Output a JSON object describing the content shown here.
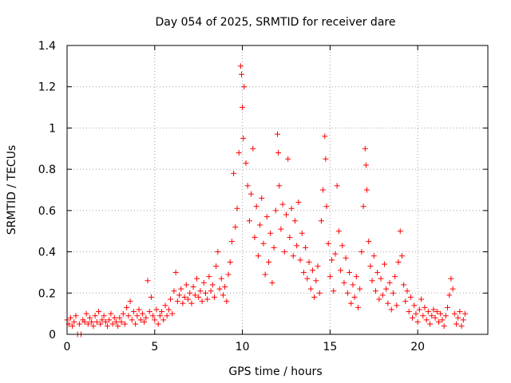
{
  "chart_data": {
    "type": "scatter",
    "title": "Day 054 of 2025, SRMTID for receiver dare",
    "xlabel": "GPS time / hours",
    "ylabel": "SRMTID / TECUs",
    "xlim": [
      0,
      24
    ],
    "ylim": [
      0,
      1.4
    ],
    "xticks": [
      0,
      5,
      10,
      15,
      20
    ],
    "yticks": [
      0,
      0.2,
      0.4,
      0.6,
      0.8,
      1,
      1.2,
      1.4
    ],
    "xtick_labels": [
      "0",
      "5",
      "10",
      "15",
      "20"
    ],
    "ytick_labels": [
      "0",
      "0.2",
      "0.4",
      "0.6",
      "0.8",
      "1",
      "1.2",
      "1.4"
    ],
    "grid": true,
    "marker": "+",
    "series": [
      {
        "name": "SRMTID",
        "color": "#ff0000",
        "points": [
          [
            0.0,
            0.07
          ],
          [
            0.1,
            0.05
          ],
          [
            0.2,
            0.08
          ],
          [
            0.3,
            0.04
          ],
          [
            0.4,
            0.06
          ],
          [
            0.5,
            0.09
          ],
          [
            0.6,
            0.0
          ],
          [
            0.7,
            0.05
          ],
          [
            0.8,
            0.0
          ],
          [
            0.9,
            0.07
          ],
          [
            1.0,
            0.06
          ],
          [
            1.1,
            0.1
          ],
          [
            1.2,
            0.05
          ],
          [
            1.3,
            0.08
          ],
          [
            1.4,
            0.06
          ],
          [
            1.5,
            0.04
          ],
          [
            1.6,
            0.09
          ],
          [
            1.7,
            0.06
          ],
          [
            1.8,
            0.11
          ],
          [
            1.9,
            0.05
          ],
          [
            2.0,
            0.07
          ],
          [
            2.1,
            0.09
          ],
          [
            2.2,
            0.06
          ],
          [
            2.3,
            0.04
          ],
          [
            2.4,
            0.07
          ],
          [
            2.5,
            0.1
          ],
          [
            2.6,
            0.05
          ],
          [
            2.7,
            0.08
          ],
          [
            2.8,
            0.06
          ],
          [
            2.9,
            0.04
          ],
          [
            3.0,
            0.08
          ],
          [
            3.1,
            0.06
          ],
          [
            3.2,
            0.1
          ],
          [
            3.3,
            0.05
          ],
          [
            3.4,
            0.13
          ],
          [
            3.5,
            0.09
          ],
          [
            3.6,
            0.16
          ],
          [
            3.7,
            0.07
          ],
          [
            3.8,
            0.11
          ],
          [
            3.9,
            0.05
          ],
          [
            4.0,
            0.09
          ],
          [
            4.1,
            0.12
          ],
          [
            4.2,
            0.07
          ],
          [
            4.3,
            0.1
          ],
          [
            4.4,
            0.06
          ],
          [
            4.5,
            0.08
          ],
          [
            4.6,
            0.26
          ],
          [
            4.7,
            0.11
          ],
          [
            4.8,
            0.18
          ],
          [
            4.9,
            0.09
          ],
          [
            5.0,
            0.07
          ],
          [
            5.1,
            0.12
          ],
          [
            5.2,
            0.05
          ],
          [
            5.3,
            0.09
          ],
          [
            5.4,
            0.11
          ],
          [
            5.5,
            0.07
          ],
          [
            5.6,
            0.14
          ],
          [
            5.7,
            0.09
          ],
          [
            5.8,
            0.12
          ],
          [
            5.9,
            0.17
          ],
          [
            6.0,
            0.1
          ],
          [
            6.1,
            0.21
          ],
          [
            6.2,
            0.3
          ],
          [
            6.3,
            0.16
          ],
          [
            6.4,
            0.19
          ],
          [
            6.5,
            0.22
          ],
          [
            6.6,
            0.15
          ],
          [
            6.7,
            0.18
          ],
          [
            6.8,
            0.24
          ],
          [
            6.9,
            0.17
          ],
          [
            7.0,
            0.2
          ],
          [
            7.1,
            0.15
          ],
          [
            7.2,
            0.23
          ],
          [
            7.3,
            0.19
          ],
          [
            7.4,
            0.27
          ],
          [
            7.5,
            0.18
          ],
          [
            7.6,
            0.21
          ],
          [
            7.7,
            0.16
          ],
          [
            7.8,
            0.25
          ],
          [
            7.9,
            0.2
          ],
          [
            8.0,
            0.17
          ],
          [
            8.1,
            0.28
          ],
          [
            8.2,
            0.21
          ],
          [
            8.3,
            0.24
          ],
          [
            8.4,
            0.18
          ],
          [
            8.5,
            0.33
          ],
          [
            8.6,
            0.4
          ],
          [
            8.7,
            0.22
          ],
          [
            8.8,
            0.27
          ],
          [
            8.9,
            0.19
          ],
          [
            9.0,
            0.23
          ],
          [
            9.1,
            0.16
          ],
          [
            9.2,
            0.29
          ],
          [
            9.3,
            0.35
          ],
          [
            9.4,
            0.45
          ],
          [
            9.5,
            0.78
          ],
          [
            9.6,
            0.52
          ],
          [
            9.7,
            0.61
          ],
          [
            9.8,
            0.88
          ],
          [
            9.9,
            1.3
          ],
          [
            9.95,
            1.26
          ],
          [
            10.0,
            1.1
          ],
          [
            10.05,
            0.95
          ],
          [
            10.1,
            1.2
          ],
          [
            10.2,
            0.83
          ],
          [
            10.3,
            0.72
          ],
          [
            10.4,
            0.55
          ],
          [
            10.5,
            0.68
          ],
          [
            10.6,
            0.9
          ],
          [
            10.7,
            0.47
          ],
          [
            10.8,
            0.62
          ],
          [
            10.9,
            0.38
          ],
          [
            11.0,
            0.53
          ],
          [
            11.1,
            0.66
          ],
          [
            11.2,
            0.44
          ],
          [
            11.3,
            0.29
          ],
          [
            11.4,
            0.57
          ],
          [
            11.5,
            0.35
          ],
          [
            11.6,
            0.49
          ],
          [
            11.7,
            0.25
          ],
          [
            11.8,
            0.42
          ],
          [
            11.9,
            0.6
          ],
          [
            12.0,
            0.97
          ],
          [
            12.05,
            0.88
          ],
          [
            12.1,
            0.72
          ],
          [
            12.2,
            0.51
          ],
          [
            12.3,
            0.63
          ],
          [
            12.4,
            0.4
          ],
          [
            12.5,
            0.58
          ],
          [
            12.6,
            0.85
          ],
          [
            12.7,
            0.47
          ],
          [
            12.8,
            0.61
          ],
          [
            12.9,
            0.38
          ],
          [
            13.0,
            0.55
          ],
          [
            13.1,
            0.43
          ],
          [
            13.2,
            0.64
          ],
          [
            13.3,
            0.36
          ],
          [
            13.4,
            0.49
          ],
          [
            13.5,
            0.3
          ],
          [
            13.6,
            0.42
          ],
          [
            13.7,
            0.27
          ],
          [
            13.8,
            0.35
          ],
          [
            13.9,
            0.22
          ],
          [
            14.0,
            0.31
          ],
          [
            14.1,
            0.18
          ],
          [
            14.2,
            0.26
          ],
          [
            14.3,
            0.33
          ],
          [
            14.4,
            0.2
          ],
          [
            14.5,
            0.55
          ],
          [
            14.6,
            0.7
          ],
          [
            14.7,
            0.96
          ],
          [
            14.75,
            0.85
          ],
          [
            14.8,
            0.62
          ],
          [
            14.9,
            0.44
          ],
          [
            15.0,
            0.28
          ],
          [
            15.1,
            0.36
          ],
          [
            15.2,
            0.21
          ],
          [
            15.3,
            0.39
          ],
          [
            15.4,
            0.72
          ],
          [
            15.5,
            0.5
          ],
          [
            15.6,
            0.31
          ],
          [
            15.7,
            0.43
          ],
          [
            15.8,
            0.25
          ],
          [
            15.9,
            0.37
          ],
          [
            16.0,
            0.2
          ],
          [
            16.1,
            0.3
          ],
          [
            16.2,
            0.15
          ],
          [
            16.3,
            0.24
          ],
          [
            16.4,
            0.18
          ],
          [
            16.5,
            0.28
          ],
          [
            16.6,
            0.13
          ],
          [
            16.7,
            0.22
          ],
          [
            16.8,
            0.4
          ],
          [
            16.9,
            0.62
          ],
          [
            17.0,
            0.9
          ],
          [
            17.05,
            0.82
          ],
          [
            17.1,
            0.7
          ],
          [
            17.2,
            0.45
          ],
          [
            17.3,
            0.33
          ],
          [
            17.4,
            0.26
          ],
          [
            17.5,
            0.38
          ],
          [
            17.6,
            0.21
          ],
          [
            17.7,
            0.3
          ],
          [
            17.8,
            0.17
          ],
          [
            17.9,
            0.27
          ],
          [
            18.0,
            0.19
          ],
          [
            18.1,
            0.34
          ],
          [
            18.2,
            0.22
          ],
          [
            18.3,
            0.15
          ],
          [
            18.4,
            0.25
          ],
          [
            18.5,
            0.12
          ],
          [
            18.6,
            0.2
          ],
          [
            18.7,
            0.28
          ],
          [
            18.8,
            0.14
          ],
          [
            18.9,
            0.35
          ],
          [
            19.0,
            0.5
          ],
          [
            19.1,
            0.38
          ],
          [
            19.2,
            0.24
          ],
          [
            19.3,
            0.16
          ],
          [
            19.4,
            0.21
          ],
          [
            19.5,
            0.11
          ],
          [
            19.6,
            0.18
          ],
          [
            19.7,
            0.08
          ],
          [
            19.8,
            0.14
          ],
          [
            19.9,
            0.1
          ],
          [
            20.0,
            0.06
          ],
          [
            20.1,
            0.12
          ],
          [
            20.2,
            0.17
          ],
          [
            20.3,
            0.09
          ],
          [
            20.4,
            0.13
          ],
          [
            20.5,
            0.07
          ],
          [
            20.6,
            0.11
          ],
          [
            20.7,
            0.05
          ],
          [
            20.8,
            0.09
          ],
          [
            20.9,
            0.12
          ],
          [
            21.0,
            0.08
          ],
          [
            21.1,
            0.11
          ],
          [
            21.2,
            0.06
          ],
          [
            21.3,
            0.1
          ],
          [
            21.4,
            0.07
          ],
          [
            21.5,
            0.04
          ],
          [
            21.6,
            0.09
          ],
          [
            21.7,
            0.13
          ],
          [
            21.8,
            0.19
          ],
          [
            21.9,
            0.27
          ],
          [
            22.0,
            0.22
          ],
          [
            22.1,
            0.1
          ],
          [
            22.2,
            0.05
          ],
          [
            22.3,
            0.08
          ],
          [
            22.4,
            0.11
          ],
          [
            22.5,
            0.04
          ],
          [
            22.6,
            0.07
          ],
          [
            22.7,
            0.1
          ]
        ]
      }
    ]
  }
}
